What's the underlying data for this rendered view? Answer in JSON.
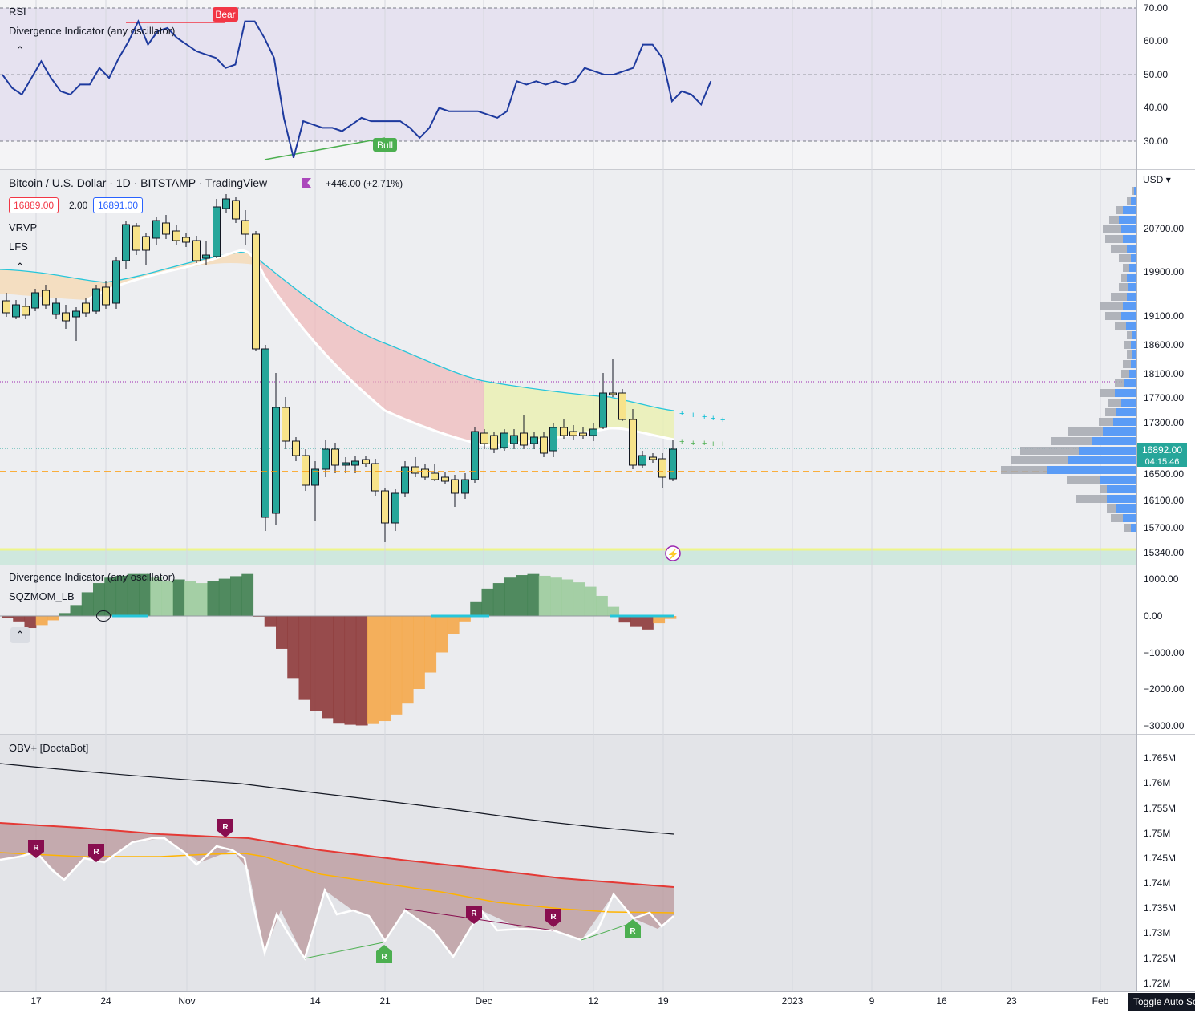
{
  "panes": {
    "rsi": {
      "title": "RSI",
      "indicator": "Divergence Indicator (any oscillator)",
      "ticks": [
        "70.00",
        "60.00",
        "50.00",
        "40.00",
        "30.00"
      ],
      "labels": {
        "bear": "Bear",
        "bull": "Bull"
      },
      "values": [
        50,
        46,
        44,
        49,
        54,
        49,
        45,
        44,
        47,
        47,
        52,
        49,
        55,
        60,
        66,
        59,
        63,
        64,
        61,
        59,
        57,
        56,
        55,
        52,
        53,
        66,
        66,
        61,
        55,
        37,
        25,
        36,
        35,
        34,
        34,
        33,
        35,
        37,
        36,
        36,
        36,
        36,
        34,
        31,
        34,
        40,
        39,
        39,
        39,
        39,
        38,
        37,
        39,
        48,
        47,
        48,
        47,
        48,
        47,
        48,
        52,
        51,
        50,
        50,
        51,
        52,
        59,
        59,
        55,
        42,
        45,
        44,
        41,
        48
      ]
    },
    "price": {
      "symbol": "Bitcoin / U.S. Dollar · 1D · BITSTAMP · TradingView",
      "change": "+446.00 (+2.71%)",
      "bid": "16889.00",
      "spread": "2.00",
      "ask": "16891.00",
      "indicators": [
        "VRVP",
        "LFS"
      ],
      "currency": "USD",
      "ticks": [
        "20700.00",
        "19900.00",
        "19100.00",
        "18600.00",
        "18100.00",
        "17700.00",
        "17300.00",
        "16500.00",
        "16100.00",
        "15700.00",
        "15340.00"
      ],
      "last_price": "16892.00",
      "countdown": "04:15:46"
    },
    "sqzmom": {
      "indicator": "Divergence Indicator (any oscillator)",
      "name": "SQZMOM_LB",
      "ticks": [
        "1000.00",
        "0.00",
        "−1000.00",
        "−2000.00",
        "−3000.00"
      ],
      "values": [
        -50,
        -150,
        -330,
        -250,
        -120,
        80,
        300,
        650,
        900,
        1050,
        1100,
        1150,
        1150,
        1050,
        950,
        1000,
        950,
        900,
        950,
        1020,
        1090,
        1150,
        -20,
        -300,
        -900,
        -1700,
        -2300,
        -2600,
        -2800,
        -2950,
        -2980,
        -3000,
        -2960,
        -2880,
        -2700,
        -2400,
        -2000,
        -1550,
        -1000,
        -500,
        -150,
        400,
        750,
        900,
        1050,
        1120,
        1150,
        1100,
        1050,
        1000,
        920,
        800,
        550,
        250,
        -180,
        -300,
        -370,
        -200,
        -80
      ]
    },
    "obv": {
      "indicator": "OBV+ [DoctaBot]",
      "ticks": [
        "1.765M",
        "1.76M",
        "1.755M",
        "1.75M",
        "1.745M",
        "1.74M",
        "1.735M",
        "1.73M",
        "1.725M",
        "1.72M"
      ],
      "marker_label": "R"
    }
  },
  "time_axis": [
    "17",
    "24",
    "Nov",
    "14",
    "21",
    "Dec",
    "12",
    "19",
    "2023",
    "9",
    "16",
    "23",
    "Feb"
  ],
  "tooltip": "Toggle Auto Scale",
  "colors": {
    "up_candle": "#26a69a",
    "down_candle": "#f7e38a",
    "rsi_line": "#1e3a9e",
    "bear": "#f23645",
    "bull": "#4caf50",
    "teal": "#26c6da",
    "orange": "#ff9800",
    "red_line": "#e53935"
  }
}
